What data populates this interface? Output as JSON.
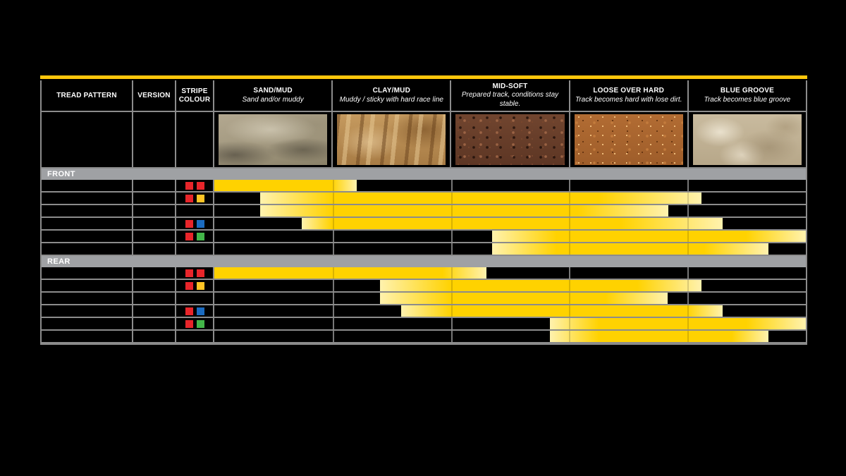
{
  "page": {
    "background": "#000000",
    "accent_bar_color": "#FFC60B",
    "grid_color": "#8c8c8c",
    "section_bar_color": "#9fa1a4"
  },
  "bar_colors": {
    "solid": "#FFD200",
    "pale": "#FFF2AE"
  },
  "swatch_colors": {
    "red": "#E8252A",
    "yellow": "#FFC425",
    "blue": "#1B6BC0",
    "green": "#43B649"
  },
  "table": {
    "columns": [
      {
        "id": "tread_pattern",
        "title": "TREAD PATTERN",
        "subtitle": ""
      },
      {
        "id": "version",
        "title": "VERSION",
        "subtitle": ""
      },
      {
        "id": "stripe_colour",
        "title": "STRIPE COLOUR",
        "subtitle": ""
      },
      {
        "id": "sand_mud",
        "title": "SAND/MUD",
        "subtitle": "Sand and/or muddy",
        "image": "sand-terrain-photo"
      },
      {
        "id": "clay_mud",
        "title": "CLAY/MUD",
        "subtitle": "Muddy / sticky with hard race line",
        "image": "clay-terrain-photo"
      },
      {
        "id": "mid_soft",
        "title": "MID-SOFT",
        "subtitle": "Prepared track, conditions stay stable.",
        "image": "midsoft-terrain-photo"
      },
      {
        "id": "loose_over_hard",
        "title": "LOOSE OVER HARD",
        "subtitle": "Track becomes hard with lose dirt.",
        "image": "loose-terrain-photo"
      },
      {
        "id": "blue_groove",
        "title": "BLUE GROOVE",
        "subtitle": "Track becomes blue groove",
        "image": "bluegroove-terrain-photo"
      }
    ],
    "sections": [
      {
        "label": "FRONT",
        "rows": [
          {
            "tread_pattern": "",
            "version": "",
            "stripes": [
              "red",
              "red"
            ],
            "bar": {
              "start": 0,
              "solid_start": 0,
              "solid_end": 19.9,
              "end": 24.1
            }
          },
          {
            "tread_pattern": "",
            "version": "",
            "stripes": [
              "red",
              "yellow"
            ],
            "bar": {
              "start": 7.7,
              "solid_start": 19.9,
              "solid_end": 65.0,
              "end": 82.4
            }
          },
          {
            "tread_pattern": "",
            "version": "",
            "stripes": [],
            "bar": {
              "start": 7.7,
              "solid_start": 19.9,
              "solid_end": 61.4,
              "end": 76.7
            }
          },
          {
            "tread_pattern": "",
            "version": "",
            "stripes": [
              "red",
              "blue"
            ],
            "bar": {
              "start": 14.8,
              "solid_start": 19.9,
              "solid_end": 68.6,
              "end": 85.9
            }
          },
          {
            "tread_pattern": "",
            "version": "",
            "stripes": [
              "red",
              "green"
            ],
            "bar": {
              "start": 47.0,
              "solid_start": 57.9,
              "solid_end": 89.9,
              "end": 100
            }
          },
          {
            "tread_pattern": "",
            "version": "",
            "stripes": [],
            "bar": {
              "start": 47.0,
              "solid_start": 57.9,
              "solid_end": 82.8,
              "end": 93.7
            }
          }
        ]
      },
      {
        "label": "REAR",
        "rows": [
          {
            "tread_pattern": "",
            "version": "",
            "stripes": [
              "red",
              "red"
            ],
            "bar": {
              "start": 0,
              "solid_start": 0,
              "solid_end": 38.6,
              "end": 46.0
            }
          },
          {
            "tread_pattern": "",
            "version": "",
            "stripes": [
              "red",
              "yellow"
            ],
            "bar": {
              "start": 28.0,
              "solid_start": 40.1,
              "solid_end": 71.5,
              "end": 82.4
            }
          },
          {
            "tread_pattern": "",
            "version": "",
            "stripes": [],
            "bar": {
              "start": 28.0,
              "solid_start": 40.1,
              "solid_end": 66.2,
              "end": 76.7
            }
          },
          {
            "tread_pattern": "",
            "version": "",
            "stripes": [
              "red",
              "blue"
            ],
            "bar": {
              "start": 31.6,
              "solid_start": 40.1,
              "solid_end": 79.8,
              "end": 85.9
            }
          },
          {
            "tread_pattern": "",
            "version": "",
            "stripes": [
              "red",
              "green"
            ],
            "bar": {
              "start": 56.7,
              "solid_start": 65.0,
              "solid_end": 89.9,
              "end": 100
            }
          },
          {
            "tread_pattern": "",
            "version": "",
            "stripes": [],
            "bar": {
              "start": 56.7,
              "solid_start": 65.0,
              "solid_end": 87.5,
              "end": 93.7
            }
          }
        ]
      }
    ]
  },
  "chart_data": {
    "type": "range-bars",
    "title": "Tyre terrain suitability chart",
    "x_axis": {
      "categories": [
        "SAND/MUD",
        "CLAY/MUD",
        "MID-SOFT",
        "LOOSE OVER HARD",
        "BLUE GROOVE"
      ],
      "range": [
        0,
        5
      ],
      "note": "values are positions across the five terrain columns; 1 unit = one terrain column"
    },
    "series": [
      {
        "group": "FRONT",
        "rows": [
          {
            "stripe_colour": [
              "red",
              "red"
            ],
            "range": [
              0,
              1.21
            ]
          },
          {
            "stripe_colour": [
              "red",
              "yellow"
            ],
            "range": [
              0.39,
              4.12
            ]
          },
          {
            "stripe_colour": [],
            "range": [
              0.39,
              3.84
            ]
          },
          {
            "stripe_colour": [
              "red",
              "blue"
            ],
            "range": [
              0.74,
              4.3
            ]
          },
          {
            "stripe_colour": [
              "red",
              "green"
            ],
            "range": [
              2.35,
              5.0
            ]
          },
          {
            "stripe_colour": [],
            "range": [
              2.35,
              4.69
            ]
          }
        ]
      },
      {
        "group": "REAR",
        "rows": [
          {
            "stripe_colour": [
              "red",
              "red"
            ],
            "range": [
              0,
              2.3
            ]
          },
          {
            "stripe_colour": [
              "red",
              "yellow"
            ],
            "range": [
              1.4,
              4.12
            ]
          },
          {
            "stripe_colour": [],
            "range": [
              1.4,
              3.84
            ]
          },
          {
            "stripe_colour": [
              "red",
              "blue"
            ],
            "range": [
              1.58,
              4.3
            ]
          },
          {
            "stripe_colour": [
              "red",
              "green"
            ],
            "range": [
              2.84,
              5.0
            ]
          },
          {
            "stripe_colour": [],
            "range": [
              2.84,
              4.69
            ]
          }
        ]
      }
    ]
  }
}
